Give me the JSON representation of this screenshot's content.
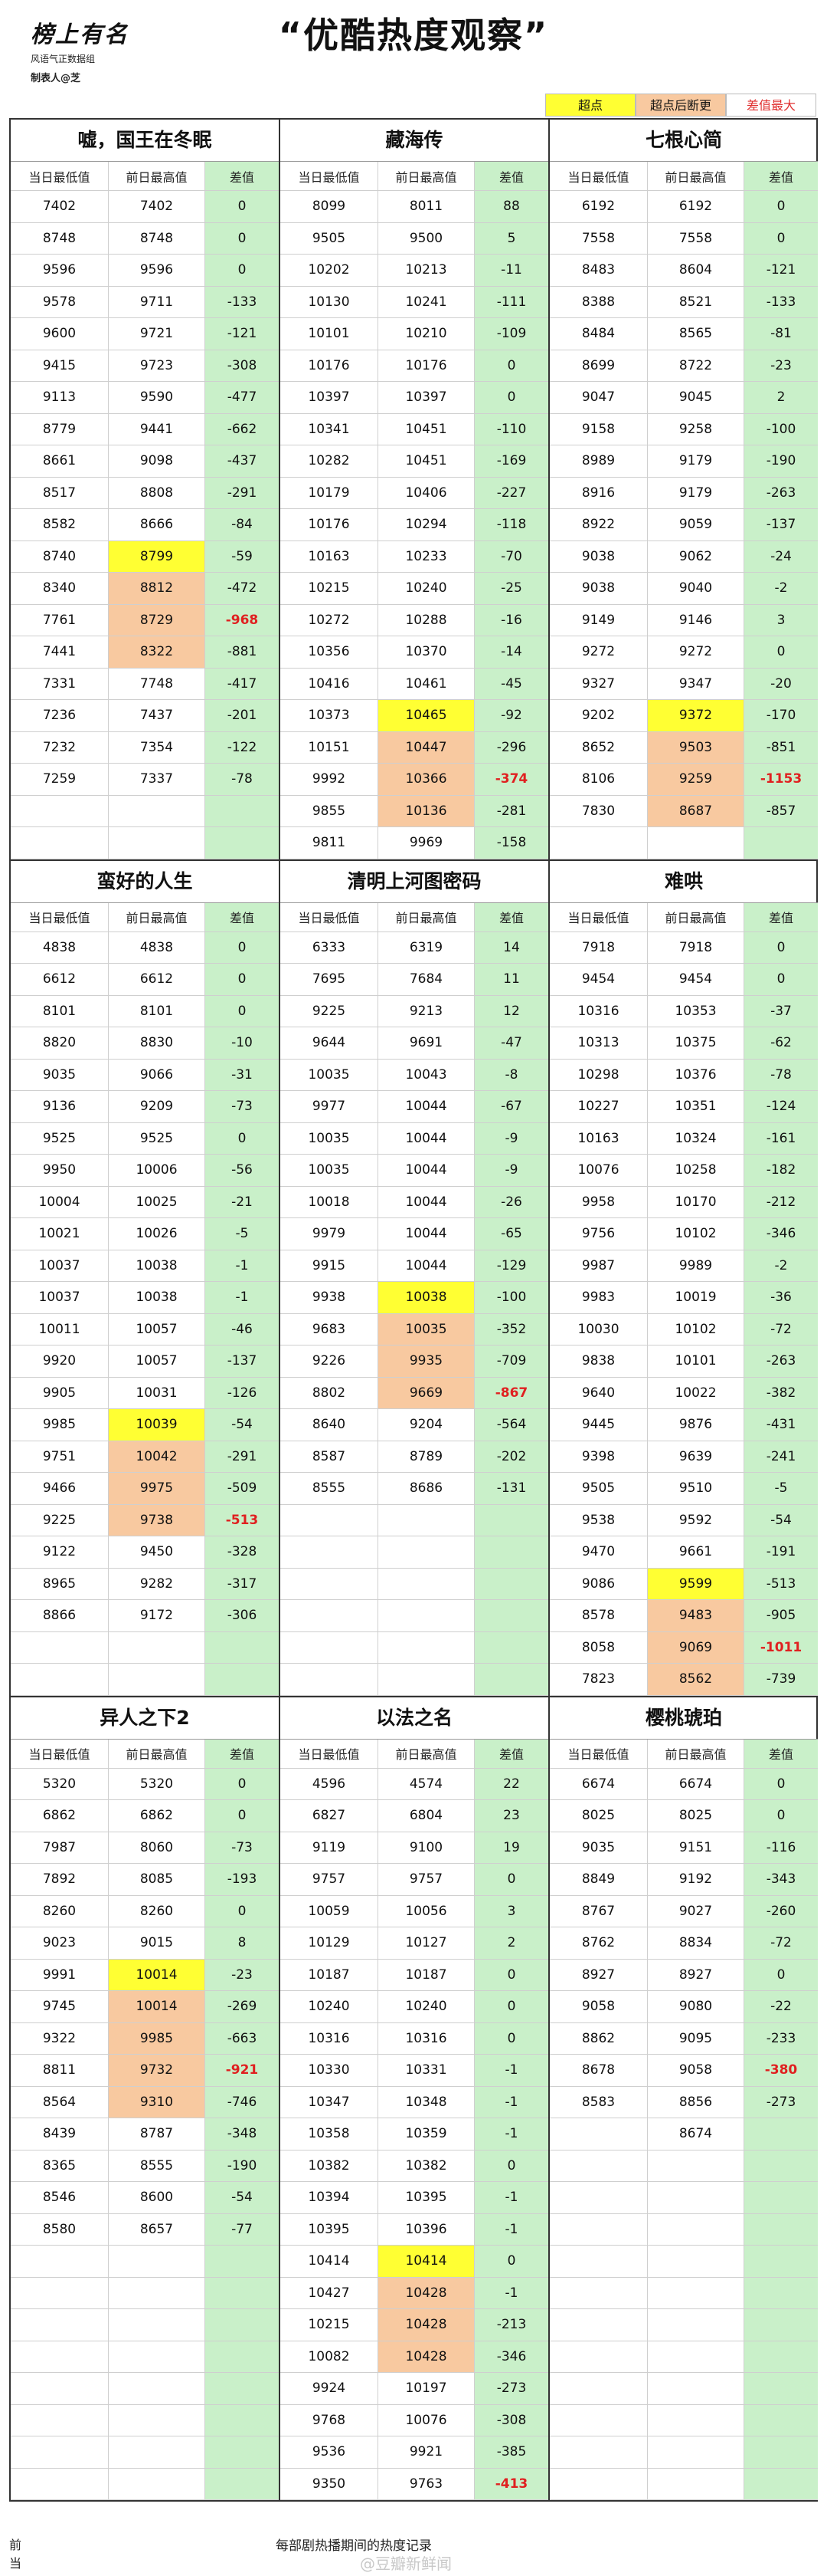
{
  "header": {
    "logo_main": "榜上有名",
    "logo_sub": "风语气正数据组",
    "logo_maker": "制表人@芝",
    "title": "“优酷热度观察”"
  },
  "legend": {
    "peak": "超点",
    "peak_break": "超点后断更",
    "max_diff": "差值最大"
  },
  "columns": {
    "low": "当日最低值",
    "high": "前日最高值",
    "diff": "差值"
  },
  "dramas": [
    {
      "title": "嘘，国王在冬眠",
      "rows": [
        [
          "7402",
          "7402",
          "0"
        ],
        [
          "8748",
          "8748",
          "0"
        ],
        [
          "9596",
          "9596",
          "0"
        ],
        [
          "9578",
          "9711",
          "-133"
        ],
        [
          "9600",
          "9721",
          "-121"
        ],
        [
          "9415",
          "9723",
          "-308"
        ],
        [
          "9113",
          "9590",
          "-477"
        ],
        [
          "8779",
          "9441",
          "-662"
        ],
        [
          "8661",
          "9098",
          "-437"
        ],
        [
          "8517",
          "8808",
          "-291"
        ],
        [
          "8582",
          "8666",
          "-84"
        ],
        [
          "8740",
          "8799",
          "-59",
          "y"
        ],
        [
          "8340",
          "8812",
          "-472",
          "o"
        ],
        [
          "7761",
          "8729",
          "-968",
          "o",
          "r"
        ],
        [
          "7441",
          "8322",
          "-881",
          "o"
        ],
        [
          "7331",
          "7748",
          "-417"
        ],
        [
          "7236",
          "7437",
          "-201"
        ],
        [
          "7232",
          "7354",
          "-122"
        ],
        [
          "7259",
          "7337",
          "-78"
        ],
        [
          "",
          "",
          ""
        ],
        [
          "",
          "",
          ""
        ]
      ]
    },
    {
      "title": "藏海传",
      "rows": [
        [
          "8099",
          "8011",
          "88"
        ],
        [
          "9505",
          "9500",
          "5"
        ],
        [
          "10202",
          "10213",
          "-11"
        ],
        [
          "10130",
          "10241",
          "-111"
        ],
        [
          "10101",
          "10210",
          "-109"
        ],
        [
          "10176",
          "10176",
          "0"
        ],
        [
          "10397",
          "10397",
          "0"
        ],
        [
          "10341",
          "10451",
          "-110"
        ],
        [
          "10282",
          "10451",
          "-169"
        ],
        [
          "10179",
          "10406",
          "-227"
        ],
        [
          "10176",
          "10294",
          "-118"
        ],
        [
          "10163",
          "10233",
          "-70"
        ],
        [
          "10215",
          "10240",
          "-25"
        ],
        [
          "10272",
          "10288",
          "-16"
        ],
        [
          "10356",
          "10370",
          "-14"
        ],
        [
          "10416",
          "10461",
          "-45"
        ],
        [
          "10373",
          "10465",
          "-92",
          "y"
        ],
        [
          "10151",
          "10447",
          "-296",
          "o"
        ],
        [
          "9992",
          "10366",
          "-374",
          "o",
          "r"
        ],
        [
          "9855",
          "10136",
          "-281",
          "o"
        ],
        [
          "9811",
          "9969",
          "-158"
        ]
      ]
    },
    {
      "title": "七根心简",
      "rows": [
        [
          "6192",
          "6192",
          "0"
        ],
        [
          "7558",
          "7558",
          "0"
        ],
        [
          "8483",
          "8604",
          "-121"
        ],
        [
          "8388",
          "8521",
          "-133"
        ],
        [
          "8484",
          "8565",
          "-81"
        ],
        [
          "8699",
          "8722",
          "-23"
        ],
        [
          "9047",
          "9045",
          "2"
        ],
        [
          "9158",
          "9258",
          "-100"
        ],
        [
          "8989",
          "9179",
          "-190"
        ],
        [
          "8916",
          "9179",
          "-263"
        ],
        [
          "8922",
          "9059",
          "-137"
        ],
        [
          "9038",
          "9062",
          "-24"
        ],
        [
          "9038",
          "9040",
          "-2"
        ],
        [
          "9149",
          "9146",
          "3"
        ],
        [
          "9272",
          "9272",
          "0"
        ],
        [
          "9327",
          "9347",
          "-20"
        ],
        [
          "9202",
          "9372",
          "-170",
          "y"
        ],
        [
          "8652",
          "9503",
          "-851",
          "o"
        ],
        [
          "8106",
          "9259",
          "-1153",
          "o",
          "r"
        ],
        [
          "7830",
          "8687",
          "-857",
          "o"
        ],
        [
          "",
          "",
          ""
        ]
      ]
    },
    {
      "title": "蛮好的人生",
      "rows": [
        [
          "4838",
          "4838",
          "0"
        ],
        [
          "6612",
          "6612",
          "0"
        ],
        [
          "8101",
          "8101",
          "0"
        ],
        [
          "8820",
          "8830",
          "-10"
        ],
        [
          "9035",
          "9066",
          "-31"
        ],
        [
          "9136",
          "9209",
          "-73"
        ],
        [
          "9525",
          "9525",
          "0"
        ],
        [
          "9950",
          "10006",
          "-56"
        ],
        [
          "10004",
          "10025",
          "-21"
        ],
        [
          "10021",
          "10026",
          "-5"
        ],
        [
          "10037",
          "10038",
          "-1"
        ],
        [
          "10037",
          "10038",
          "-1"
        ],
        [
          "10011",
          "10057",
          "-46"
        ],
        [
          "9920",
          "10057",
          "-137"
        ],
        [
          "9905",
          "10031",
          "-126"
        ],
        [
          "9985",
          "10039",
          "-54",
          "y"
        ],
        [
          "9751",
          "10042",
          "-291",
          "o"
        ],
        [
          "9466",
          "9975",
          "-509",
          "o"
        ],
        [
          "9225",
          "9738",
          "-513",
          "o",
          "r"
        ],
        [
          "9122",
          "9450",
          "-328"
        ],
        [
          "8965",
          "9282",
          "-317"
        ],
        [
          "8866",
          "9172",
          "-306"
        ],
        [
          "",
          "",
          ""
        ],
        [
          "",
          "",
          ""
        ]
      ]
    },
    {
      "title": "清明上河图密码",
      "rows": [
        [
          "6333",
          "6319",
          "14"
        ],
        [
          "7695",
          "7684",
          "11"
        ],
        [
          "9225",
          "9213",
          "12"
        ],
        [
          "9644",
          "9691",
          "-47"
        ],
        [
          "10035",
          "10043",
          "-8"
        ],
        [
          "9977",
          "10044",
          "-67"
        ],
        [
          "10035",
          "10044",
          "-9"
        ],
        [
          "10035",
          "10044",
          "-9"
        ],
        [
          "10018",
          "10044",
          "-26"
        ],
        [
          "9979",
          "10044",
          "-65"
        ],
        [
          "9915",
          "10044",
          "-129"
        ],
        [
          "9938",
          "10038",
          "-100",
          "y"
        ],
        [
          "9683",
          "10035",
          "-352",
          "o"
        ],
        [
          "9226",
          "9935",
          "-709",
          "o"
        ],
        [
          "8802",
          "9669",
          "-867",
          "o",
          "r"
        ],
        [
          "8640",
          "9204",
          "-564"
        ],
        [
          "8587",
          "8789",
          "-202"
        ],
        [
          "8555",
          "8686",
          "-131"
        ],
        [
          "",
          "",
          ""
        ],
        [
          "",
          "",
          ""
        ],
        [
          "",
          "",
          ""
        ],
        [
          "",
          "",
          ""
        ],
        [
          "",
          "",
          ""
        ],
        [
          "",
          "",
          ""
        ]
      ]
    },
    {
      "title": "难哄",
      "rows": [
        [
          "7918",
          "7918",
          "0"
        ],
        [
          "9454",
          "9454",
          "0"
        ],
        [
          "10316",
          "10353",
          "-37"
        ],
        [
          "10313",
          "10375",
          "-62"
        ],
        [
          "10298",
          "10376",
          "-78"
        ],
        [
          "10227",
          "10351",
          "-124"
        ],
        [
          "10163",
          "10324",
          "-161"
        ],
        [
          "10076",
          "10258",
          "-182"
        ],
        [
          "9958",
          "10170",
          "-212"
        ],
        [
          "9756",
          "10102",
          "-346"
        ],
        [
          "9987",
          "9989",
          "-2"
        ],
        [
          "9983",
          "10019",
          "-36"
        ],
        [
          "10030",
          "10102",
          "-72"
        ],
        [
          "9838",
          "10101",
          "-263"
        ],
        [
          "9640",
          "10022",
          "-382"
        ],
        [
          "9445",
          "9876",
          "-431"
        ],
        [
          "9398",
          "9639",
          "-241"
        ],
        [
          "9505",
          "9510",
          "-5"
        ],
        [
          "9538",
          "9592",
          "-54"
        ],
        [
          "9470",
          "9661",
          "-191"
        ],
        [
          "9086",
          "9599",
          "-513",
          "y"
        ],
        [
          "8578",
          "9483",
          "-905",
          "o"
        ],
        [
          "8058",
          "9069",
          "-1011",
          "o",
          "r"
        ],
        [
          "7823",
          "8562",
          "-739",
          "o"
        ]
      ]
    },
    {
      "title": "异人之下2",
      "rows": [
        [
          "5320",
          "5320",
          "0"
        ],
        [
          "6862",
          "6862",
          "0"
        ],
        [
          "7987",
          "8060",
          "-73"
        ],
        [
          "7892",
          "8085",
          "-193"
        ],
        [
          "8260",
          "8260",
          "0"
        ],
        [
          "9023",
          "9015",
          "8"
        ],
        [
          "9991",
          "10014",
          "-23",
          "y"
        ],
        [
          "9745",
          "10014",
          "-269",
          "o"
        ],
        [
          "9322",
          "9985",
          "-663",
          "o"
        ],
        [
          "8811",
          "9732",
          "-921",
          "o",
          "r"
        ],
        [
          "8564",
          "9310",
          "-746",
          "o"
        ],
        [
          "8439",
          "8787",
          "-348"
        ],
        [
          "8365",
          "8555",
          "-190"
        ],
        [
          "8546",
          "8600",
          "-54"
        ],
        [
          "8580",
          "8657",
          "-77"
        ],
        [
          "",
          "",
          ""
        ],
        [
          "",
          "",
          ""
        ],
        [
          "",
          "",
          ""
        ],
        [
          "",
          "",
          ""
        ],
        [
          "",
          "",
          ""
        ],
        [
          "",
          "",
          ""
        ],
        [
          "",
          "",
          ""
        ],
        [
          "",
          "",
          ""
        ]
      ]
    },
    {
      "title": "以法之名",
      "rows": [
        [
          "4596",
          "4574",
          "22"
        ],
        [
          "6827",
          "6804",
          "23"
        ],
        [
          "9119",
          "9100",
          "19"
        ],
        [
          "9757",
          "9757",
          "0"
        ],
        [
          "10059",
          "10056",
          "3"
        ],
        [
          "10129",
          "10127",
          "2"
        ],
        [
          "10187",
          "10187",
          "0"
        ],
        [
          "10240",
          "10240",
          "0"
        ],
        [
          "10316",
          "10316",
          "0"
        ],
        [
          "10330",
          "10331",
          "-1"
        ],
        [
          "10347",
          "10348",
          "-1"
        ],
        [
          "10358",
          "10359",
          "-1"
        ],
        [
          "10382",
          "10382",
          "0"
        ],
        [
          "10394",
          "10395",
          "-1"
        ],
        [
          "10395",
          "10396",
          "-1"
        ],
        [
          "10414",
          "10414",
          "0",
          "y"
        ],
        [
          "10427",
          "10428",
          "-1",
          "o"
        ],
        [
          "10215",
          "10428",
          "-213",
          "o"
        ],
        [
          "10082",
          "10428",
          "-346",
          "o"
        ],
        [
          "9924",
          "10197",
          "-273"
        ],
        [
          "9768",
          "10076",
          "-308"
        ],
        [
          "9536",
          "9921",
          "-385"
        ],
        [
          "9350",
          "9763",
          "-413",
          "",
          "r"
        ]
      ]
    },
    {
      "title": "樱桃琥珀",
      "rows": [
        [
          "6674",
          "6674",
          "0"
        ],
        [
          "8025",
          "8025",
          "0"
        ],
        [
          "9035",
          "9151",
          "-116"
        ],
        [
          "8849",
          "9192",
          "-343"
        ],
        [
          "8767",
          "9027",
          "-260"
        ],
        [
          "8762",
          "8834",
          "-72"
        ],
        [
          "8927",
          "8927",
          "0"
        ],
        [
          "9058",
          "9080",
          "-22"
        ],
        [
          "8862",
          "9095",
          "-233"
        ],
        [
          "8678",
          "9058",
          "-380",
          "",
          "r"
        ],
        [
          "8583",
          "8856",
          "-273"
        ],
        [
          "",
          "8674",
          ""
        ],
        [
          "",
          "",
          ""
        ],
        [
          "",
          "",
          ""
        ],
        [
          "",
          "",
          ""
        ],
        [
          "",
          "",
          ""
        ],
        [
          "",
          "",
          ""
        ],
        [
          "",
          "",
          ""
        ],
        [
          "",
          "",
          ""
        ],
        [
          "",
          "",
          ""
        ],
        [
          "",
          "",
          ""
        ],
        [
          "",
          "",
          ""
        ],
        [
          "",
          "",
          ""
        ]
      ]
    }
  ],
  "footer": {
    "note": "每部剧热播期间的热度记录",
    "left1": "前",
    "left2": "当",
    "watermark": "@豆瓣新鲜闻"
  }
}
